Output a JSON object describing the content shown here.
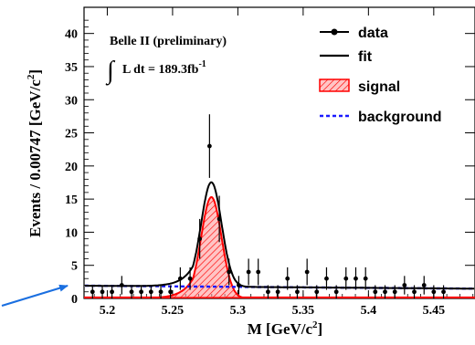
{
  "chart_data": {
    "type": "scatter",
    "experiment_label": "Belle II (preliminary)",
    "luminosity_label": "L dt = 189.3fb",
    "luminosity_exponent": "-1",
    "integral_symbol": "∫",
    "xlabel_main": "M [GeV/c",
    "xlabel_sup": "2",
    "xlabel_tail": "]",
    "ylabel_main": "Events / 0.00747 [GeV/c",
    "ylabel_sup": "2",
    "ylabel_tail": "]",
    "xlim": [
      5.18,
      5.48
    ],
    "ylim": [
      0,
      42
    ],
    "x_ticks": [
      {
        "value": 5.2,
        "label": "5.2"
      },
      {
        "value": 5.25,
        "label": "5.25"
      },
      {
        "value": 5.3,
        "label": "5.3"
      },
      {
        "value": 5.35,
        "label": "5.35"
      },
      {
        "value": 5.4,
        "label": "5.4"
      },
      {
        "value": 5.45,
        "label": "5.45"
      }
    ],
    "y_ticks": [
      {
        "value": 0,
        "label": "0"
      },
      {
        "value": 5,
        "label": "5"
      },
      {
        "value": 10,
        "label": "10"
      },
      {
        "value": 15,
        "label": "15"
      },
      {
        "value": 20,
        "label": "20"
      },
      {
        "value": 25,
        "label": "25"
      },
      {
        "value": 30,
        "label": "30"
      },
      {
        "value": 35,
        "label": "35"
      },
      {
        "value": 40,
        "label": "40"
      }
    ],
    "legend": [
      {
        "key": "data",
        "label": "data"
      },
      {
        "key": "fit",
        "label": "fit"
      },
      {
        "key": "signal",
        "label": "signal"
      },
      {
        "key": "background",
        "label": "background"
      }
    ],
    "legend_position": "top-right",
    "colors": {
      "data": "#000000",
      "fit": "#000000",
      "signal": "#ff0000",
      "background": "#1a1aff",
      "annotation_arrow": "#1a6fe0"
    },
    "fit_model": {
      "background_level": 1.9,
      "background_slope": -1.5,
      "signal_mean": 5.2797,
      "signal_sigma": 0.0078,
      "signal_peak": 15.3,
      "signal_tail": 0.75
    },
    "series": [
      {
        "name": "data",
        "x": [
          5.1887,
          5.1962,
          5.2036,
          5.2111,
          5.2186,
          5.226,
          5.2335,
          5.241,
          5.2484,
          5.2559,
          5.2634,
          5.2708,
          5.2783,
          5.2858,
          5.2932,
          5.3007,
          5.3082,
          5.3156,
          5.3231,
          5.3306,
          5.338,
          5.3455,
          5.353,
          5.3604,
          5.3679,
          5.3754,
          5.3828,
          5.3903,
          5.3978,
          5.4052,
          5.4127,
          5.4202,
          5.4276,
          5.4351,
          5.4426,
          5.45,
          5.4575
        ],
        "y": [
          1,
          1,
          1,
          2,
          1,
          1,
          1,
          1,
          1,
          3,
          3,
          9,
          23,
          12,
          4,
          2,
          4,
          4,
          1,
          1,
          3,
          1,
          4,
          1,
          3,
          1,
          3,
          3,
          3,
          1,
          1,
          1,
          2,
          1,
          2,
          1,
          1
        ],
        "yerr": [
          1,
          1,
          1,
          1.4,
          1,
          1,
          1,
          1,
          1,
          1.7,
          1.7,
          3,
          4.8,
          3.5,
          2,
          1.4,
          2,
          2,
          1,
          1,
          1.7,
          1,
          2,
          1,
          1.7,
          1,
          1.7,
          1.7,
          1.7,
          1,
          1,
          1,
          1.4,
          1,
          1.4,
          1,
          1
        ]
      },
      {
        "name": "fit"
      },
      {
        "name": "signal"
      },
      {
        "name": "background"
      }
    ]
  }
}
